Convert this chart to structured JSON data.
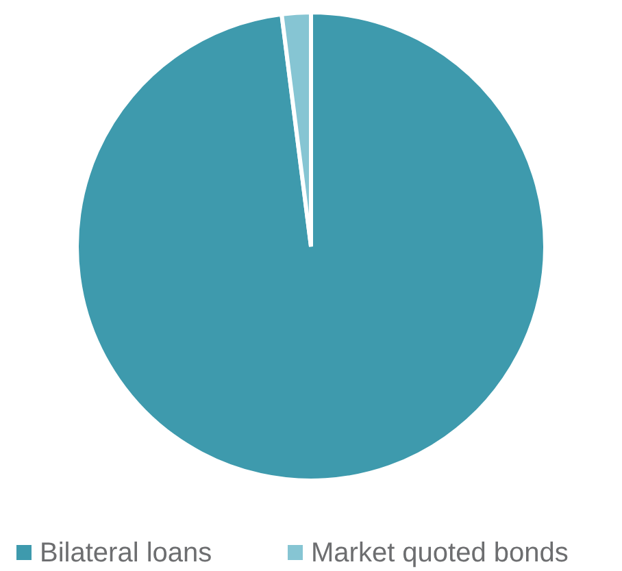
{
  "chart_data": {
    "type": "pie",
    "categories": [
      "Bilateral loans",
      "Market quoted bonds"
    ],
    "values": [
      98,
      2
    ],
    "colors": [
      "#3e9aad",
      "#86c5d3"
    ],
    "legend": "bottom"
  }
}
